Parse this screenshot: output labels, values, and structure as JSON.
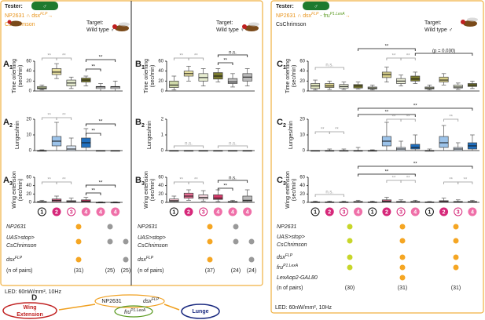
{
  "left": {
    "tester": "Tester:",
    "sex": "♂",
    "genotype": "NP2631 ∩ dsx",
    "genotype_sup": "FLP",
    "arrow": "→",
    "effector": "CsChrimson",
    "target_a": [
      "Target:",
      "Wild type ♂"
    ],
    "target_b": [
      "Target:",
      "Wild type ♀"
    ],
    "panels": [
      {
        "letter": "A",
        "sub": "1",
        "ylabel": [
          "Time orienting",
          "(sec/min)"
        ],
        "ylim": [
          0,
          60
        ],
        "yticks": [
          0,
          20,
          40,
          60
        ],
        "boxes": [
          [
            2,
            4,
            6,
            9,
            12
          ],
          [
            25,
            33,
            38,
            45,
            55
          ],
          [
            5,
            10,
            16,
            22,
            28
          ],
          [
            10,
            18,
            22,
            26,
            30
          ],
          [
            0,
            5,
            8,
            9,
            15
          ],
          [
            0,
            5,
            8,
            9,
            20
          ]
        ],
        "colors": [
          "#cfd9a8",
          "#e8e0a0",
          "#e6ecd0",
          "#7a7a2e",
          "#ffffff",
          "#ffffff"
        ],
        "sig": [
          "**",
          "**",
          "**",
          "**"
        ]
      },
      {
        "letter": "A",
        "sub": "2",
        "ylabel": [
          "Lunges/min"
        ],
        "ylim": [
          0,
          20
        ],
        "yticks": [
          0,
          10,
          20
        ],
        "boxes": [
          [
            0,
            0,
            0,
            0,
            0.5
          ],
          [
            0,
            3,
            6,
            9,
            18
          ],
          [
            0,
            0,
            1,
            3,
            8
          ],
          [
            0,
            2,
            5,
            8,
            14
          ],
          [
            0,
            0,
            0,
            0,
            0
          ],
          [
            0,
            0,
            0,
            0,
            0
          ]
        ],
        "colors": [
          "#cfe0f5",
          "#9cc3ea",
          "#dde9f7",
          "#1f6fbf",
          "#ffffff",
          "#ffffff"
        ],
        "sig": [
          "**",
          "**",
          "**",
          "**"
        ]
      },
      {
        "letter": "A",
        "sub": "3",
        "ylabel": [
          "Wing extension",
          "(sec/min)"
        ],
        "ylim": [
          0,
          60
        ],
        "yticks": [
          0,
          20,
          40,
          60
        ],
        "boxes": [
          [
            0,
            0,
            1,
            2,
            5
          ],
          [
            0,
            2,
            5,
            8,
            15
          ],
          [
            0,
            1,
            2,
            4,
            10
          ],
          [
            0,
            1,
            3,
            6,
            12
          ],
          [
            0,
            0,
            0,
            0,
            1
          ],
          [
            0,
            0,
            0,
            0,
            1
          ]
        ],
        "colors": [
          "#f7c6d3",
          "#e96f95",
          "#f5d6de",
          "#d63a6a",
          "#ffffff",
          "#ffffff"
        ],
        "sig": [
          "**",
          "**",
          "**",
          "**"
        ]
      },
      {
        "letter": "B",
        "sub": "1",
        "ylabel": [
          "Time orienting",
          "(sec/min)"
        ],
        "ylim": [
          0,
          60
        ],
        "yticks": [
          0,
          20,
          40,
          60
        ],
        "boxes": [
          [
            2,
            7,
            12,
            20,
            30
          ],
          [
            20,
            30,
            35,
            40,
            50
          ],
          [
            10,
            20,
            27,
            35,
            45
          ],
          [
            18,
            24,
            30,
            37,
            45
          ],
          [
            8,
            15,
            18,
            25,
            35
          ],
          [
            10,
            20,
            28,
            35,
            45
          ]
        ],
        "colors": [
          "#cfd9a8",
          "#e8e0a0",
          "#e6ecd0",
          "#7a7a2e",
          "#bbbbbb",
          "#bbbbbb"
        ],
        "sig": [
          "**",
          "**",
          "n.s.",
          "**"
        ]
      },
      {
        "letter": "B",
        "sub": "2",
        "ylabel": [
          "Lunges/min"
        ],
        "ylim": [
          0,
          2
        ],
        "yticks": [
          0,
          1,
          2
        ],
        "boxes": [
          [
            0,
            0,
            0,
            0,
            0
          ],
          [
            0,
            0,
            0,
            0,
            0
          ],
          [
            0,
            0,
            0,
            0,
            0
          ],
          [
            0,
            0,
            0,
            0,
            0
          ],
          [
            0,
            0,
            0,
            0,
            0
          ],
          [
            0,
            0,
            0,
            0,
            0
          ]
        ],
        "colors": [
          "#cfe0f5",
          "#9cc3ea",
          "#dde9f7",
          "#1f6fbf",
          "#bbbbbb",
          "#bbbbbb"
        ],
        "sig": [
          "n.s.",
          "n.s."
        ]
      },
      {
        "letter": "B",
        "sub": "3",
        "ylabel": [
          "Wing extension",
          "(sec/min)"
        ],
        "ylim": [
          0,
          60
        ],
        "yticks": [
          0,
          20,
          40,
          60
        ],
        "boxes": [
          [
            0,
            2,
            4,
            8,
            15
          ],
          [
            5,
            10,
            15,
            22,
            30
          ],
          [
            3,
            8,
            12,
            18,
            28
          ],
          [
            2,
            7,
            10,
            18,
            30
          ],
          [
            0,
            0,
            1,
            2,
            5
          ],
          [
            0,
            2,
            5,
            15,
            30
          ]
        ],
        "colors": [
          "#f7c6d3",
          "#e96f95",
          "#f5d6de",
          "#d63a6a",
          "#bbbbbb",
          "#bbbbbb"
        ],
        "sig": [
          "**",
          "**",
          "n.s.",
          "**"
        ]
      }
    ],
    "circles": [
      "1",
      "2",
      "3",
      "4",
      "4",
      "4"
    ],
    "tables": [
      {
        "rows": [
          {
            "label": [
              "NP2631"
            ],
            "dots": [
              "#f5a623",
              "#999999",
              null
            ]
          },
          {
            "label": [
              "UAS>stop>",
              "CsChrimson"
            ],
            "dots": [
              "#f5a623",
              "#999999",
              "#999999"
            ]
          },
          {
            "label": [
              "dsx"
            ],
            "sup": "FLP",
            "dots": [
              "#f5a623",
              null,
              "#999999"
            ]
          }
        ],
        "n_label": "(n of pairs)",
        "n": [
          "(31)",
          "(25)",
          "(25)"
        ]
      },
      {
        "rows": [
          {
            "label": [
              "NP2631"
            ],
            "dots": [
              "#f5a623",
              "#999999",
              null
            ]
          },
          {
            "label": [
              "UAS>stop>",
              "CsChrimson"
            ],
            "dots": [
              "#f5a623",
              "#999999",
              "#999999"
            ]
          },
          {
            "label": [
              "dsx"
            ],
            "sup": "FLP",
            "dots": [
              "#f5a623",
              null,
              "#999999"
            ]
          }
        ],
        "n_label": "(n of pairs)",
        "n": [
          "(37)",
          "(24)",
          "(24)"
        ]
      }
    ],
    "led": "LED: 60nW/mm², 10Hz"
  },
  "right": {
    "tester": "Tester:",
    "sex": "♂",
    "genotype": "NP2631 ∩ dsx",
    "genotype_sup": "FLP",
    "dash": " - fru",
    "fru_sup": "P1.LexA",
    "arrow": "→",
    "effector": "CsChrimson",
    "target": [
      "Target:",
      "Wild type ♂"
    ],
    "panels": [
      {
        "letter": "C",
        "sub": "1",
        "ylabel": [
          "Time orienting",
          "(sec/min)"
        ],
        "ylim": [
          0,
          60
        ],
        "yticks": [
          0,
          20,
          40,
          60
        ],
        "boxes": [
          [
            2,
            5,
            10,
            15,
            22
          ],
          [
            3,
            7,
            10,
            15,
            20
          ],
          [
            3,
            6,
            9,
            13,
            18
          ],
          [
            4,
            6,
            10,
            13,
            18
          ],
          [
            2,
            4,
            6,
            8,
            12
          ],
          [
            18,
            27,
            33,
            38,
            48
          ],
          [
            10,
            15,
            20,
            25,
            32
          ],
          [
            15,
            20,
            24,
            30,
            38
          ],
          [
            2,
            4,
            6,
            8,
            12
          ],
          [
            12,
            18,
            22,
            28,
            35
          ],
          [
            3,
            6,
            8,
            12,
            16
          ],
          [
            5,
            9,
            12,
            15,
            20
          ]
        ],
        "colors": [
          "#e0e6c0",
          "#d8d08a",
          "#ecefd8",
          "#7a7a2e",
          "#e0e6c0",
          "#d8d08a",
          "#ecefd8",
          "#7a7a2e",
          "#e0e6c0",
          "#d8d08a",
          "#ecefd8",
          "#7a7a2e"
        ],
        "sig": [
          "n.s.",
          "**",
          "**",
          "**",
          "(p = 0.030)"
        ]
      },
      {
        "letter": "C",
        "sub": "2",
        "ylabel": [
          "Lunges/min"
        ],
        "ylim": [
          0,
          20
        ],
        "yticks": [
          0,
          10,
          20
        ],
        "boxes": [
          [
            0,
            0,
            0,
            0,
            0
          ],
          [
            0,
            0,
            0,
            0,
            1
          ],
          [
            0,
            0,
            0,
            0,
            1
          ],
          [
            0,
            0,
            0,
            0,
            2
          ],
          [
            0,
            0,
            0,
            0,
            0.5
          ],
          [
            0,
            3,
            6,
            9,
            18
          ],
          [
            0,
            0,
            1,
            2,
            6
          ],
          [
            0,
            1,
            2,
            4,
            10
          ],
          [
            0,
            0,
            0,
            0,
            1
          ],
          [
            0,
            2,
            5,
            9,
            16
          ],
          [
            0,
            0,
            1,
            2,
            5
          ],
          [
            0,
            1,
            3,
            5,
            10
          ]
        ],
        "colors": [
          "#cfe0f5",
          "#9cc3ea",
          "#dde9f7",
          "#1f6fbf",
          "#cfe0f5",
          "#9cc3ea",
          "#dde9f7",
          "#1f6fbf",
          "#cfe0f5",
          "#9cc3ea",
          "#dde9f7",
          "#1f6fbf"
        ],
        "sig": [
          "**",
          "**",
          "**",
          "**",
          "**",
          "**",
          "**"
        ]
      },
      {
        "letter": "C",
        "sub": "3",
        "ylabel": [
          "Wing extension",
          "(sec/min)"
        ],
        "ylim": [
          0,
          60
        ],
        "yticks": [
          0,
          20,
          40,
          60
        ],
        "boxes": [
          [
            0,
            0,
            0,
            1,
            3
          ],
          [
            0,
            0,
            0,
            1,
            3
          ],
          [
            0,
            0,
            0,
            1,
            3
          ],
          [
            0,
            0,
            1,
            2,
            5
          ],
          [
            0,
            0,
            0,
            1,
            3
          ],
          [
            0,
            1,
            3,
            6,
            12
          ],
          [
            0,
            0,
            1,
            2,
            6
          ],
          [
            0,
            0,
            1,
            2,
            5
          ],
          [
            0,
            0,
            0,
            1,
            2
          ],
          [
            0,
            1,
            2,
            4,
            10
          ],
          [
            0,
            0,
            1,
            2,
            6
          ],
          [
            0,
            0,
            1,
            2,
            5
          ]
        ],
        "colors": [
          "#f7c6d3",
          "#e96f95",
          "#f5d6de",
          "#d63a6a",
          "#f7c6d3",
          "#e96f95",
          "#f5d6de",
          "#d63a6a",
          "#f7c6d3",
          "#e96f95",
          "#f5d6de",
          "#d63a6a"
        ],
        "sig": [
          "n.s.",
          "**",
          "**",
          "**",
          "**",
          "**",
          "**"
        ]
      }
    ],
    "circles": [
      "1",
      "2",
      "3",
      "4",
      "1",
      "2",
      "3",
      "4",
      "1",
      "2",
      "3",
      "4"
    ],
    "table": {
      "rows": [
        {
          "label": [
            "NP2631"
          ],
          "dots": [
            "#c8d62a",
            "#f5a623",
            "#f5a623"
          ]
        },
        {
          "label": [
            "UAS>stop>",
            "CsChrimson"
          ],
          "dots": [
            "#c8d62a",
            "#f5a623",
            "#f5a623"
          ]
        },
        {
          "label": [
            "dsx"
          ],
          "sup": "FLP",
          "dots": [
            "#c8d62a",
            "#f5a623",
            "#f5a623"
          ]
        },
        {
          "label": [
            "fru"
          ],
          "sup": "P1.LexA",
          "dots": [
            "#c8d62a",
            "#f5a623",
            "#f5a623"
          ]
        },
        {
          "label": [
            "LexAop2-GAL80"
          ],
          "dots": [
            null,
            "#f5a623",
            null
          ]
        }
      ],
      "n_label": "(n of pairs)",
      "n": [
        "(30)",
        "(31)",
        "(31)"
      ]
    },
    "led": "LED: 60nW/mm², 10Hz"
  },
  "d": {
    "letter": "D",
    "wing": [
      "Wing",
      "Extension"
    ],
    "np": "NP2631",
    "dsx": "dsx",
    "dsx_sup": "FLP",
    "fru": "fru",
    "fru_sup": "P1.LexA",
    "lunge": "Lunge"
  }
}
